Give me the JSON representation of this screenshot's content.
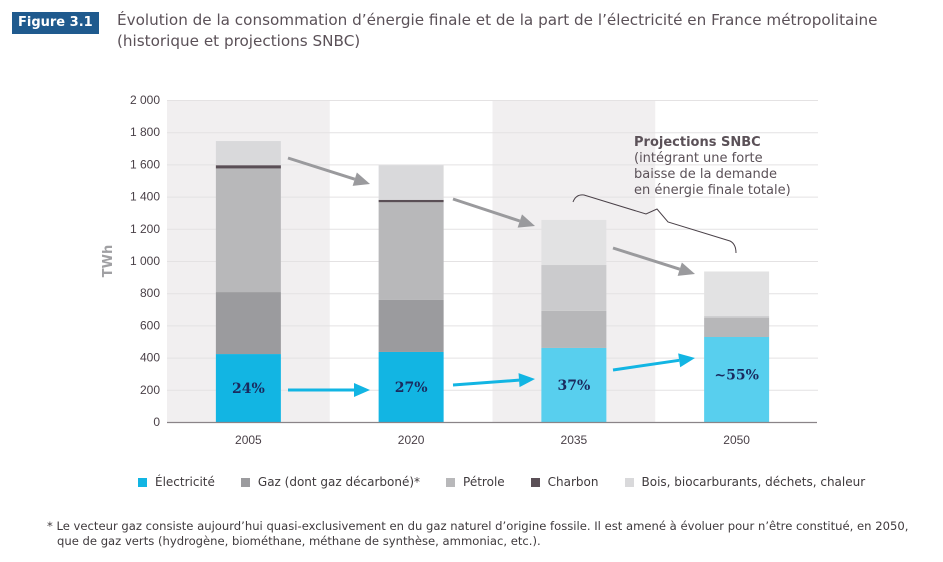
{
  "figure": {
    "badge": "Figure 3.1",
    "title_line1": "Évolution de la consommation d’énergie finale et de la part de l’électricité en France métropolitaine",
    "title_line2": "(historique et projections SNBC)"
  },
  "chart_data": {
    "type": "bar",
    "stacked": true,
    "title": "Évolution de la consommation d’énergie finale et de la part de l’électricité en France métropolitaine (historique et projections SNBC)",
    "xlabel": "",
    "ylabel": "TWh",
    "ylim": [
      0,
      2000
    ],
    "yticks": [
      0,
      200,
      400,
      600,
      800,
      1000,
      1200,
      1400,
      1600,
      1800,
      2000
    ],
    "ytick_labels": [
      "0",
      "200",
      "400",
      "600",
      "800",
      "1 000",
      "1 200",
      "1 400",
      "1 600",
      "1 800",
      "2 000"
    ],
    "grid": true,
    "categories": [
      "2005",
      "2020",
      "2035",
      "2050"
    ],
    "shaded_categories": [
      "2005",
      "2035"
    ],
    "series": [
      {
        "name": "Électricité",
        "color": "#12b5e3",
        "projection_color": "#58cfee",
        "values": [
          422,
          435,
          460,
          528
        ]
      },
      {
        "name": "Gaz (dont gaz décarboné)*",
        "color": "#9b9b9e",
        "projection_color": "#b7b7b9",
        "values": [
          385,
          323,
          230,
          118
        ]
      },
      {
        "name": "Pétrole",
        "color": "#b8b8ba",
        "projection_color": "#cbcbcd",
        "values": [
          768,
          607,
          285,
          12
        ]
      },
      {
        "name": "Charbon",
        "color": "#5a4f56",
        "projection_color": "#5a4f56",
        "values": [
          20,
          15,
          0,
          0
        ]
      },
      {
        "name": "Bois, biocarburants, déchets, chaleur",
        "color": "#d9d9db",
        "projection_color": "#e2e2e3",
        "values": [
          150,
          215,
          280,
          277
        ]
      }
    ],
    "electricity_share_labels": [
      "24%",
      "27%",
      "37%",
      "~55%"
    ],
    "projection_categories": [
      "2035",
      "2050"
    ],
    "annotation": {
      "title": "Projections SNBC",
      "lines": [
        "(intégrant une forte",
        "baisse de la demande",
        "en énergie finale totale)"
      ]
    },
    "legend_position": "bottom"
  },
  "legend": [
    {
      "label": "Électricité",
      "color": "#12b5e3"
    },
    {
      "label": "Gaz (dont gaz décarboné)*",
      "color": "#9b9b9e"
    },
    {
      "label": "Pétrole",
      "color": "#b8b8ba"
    },
    {
      "label": "Charbon",
      "color": "#5a4f56"
    },
    {
      "label": "Bois, biocarburants, déchets, chaleur",
      "color": "#d9d9db"
    }
  ],
  "footnote": {
    "line1": "* Le vecteur gaz consiste aujourd’hui quasi-exclusivement en du gaz naturel d’origine fossile. Il est amené à évoluer pour n’être constitué, en 2050,",
    "line2": "que de gaz verts (hydrogène, biométhane, méthane de synthèse, ammoniac, etc.)."
  },
  "colors": {
    "badge_bg": "#1f5a8e",
    "arrow_grey": "#9a9a9d",
    "arrow_cyan": "#12b5e3",
    "shade": "#f1eff0"
  }
}
